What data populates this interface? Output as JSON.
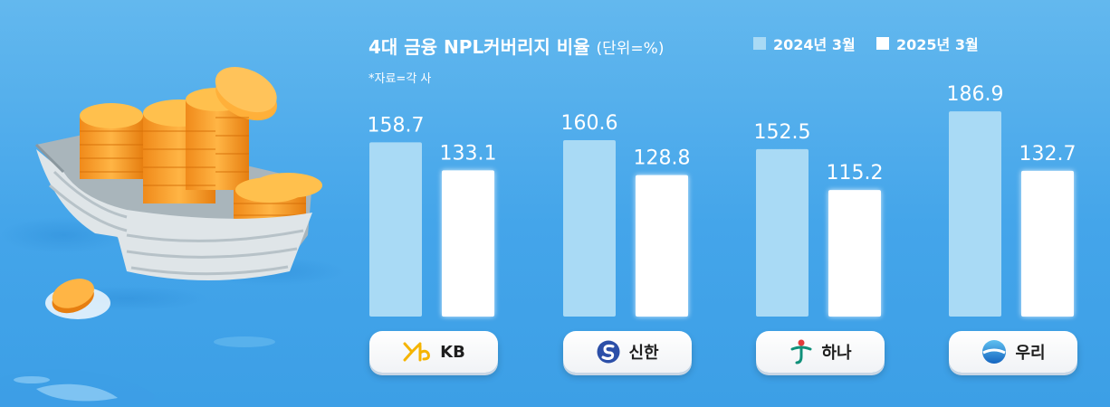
{
  "header": {
    "title": "4대 금융 NPL커버리지 비율",
    "unit": "(단위=%)",
    "source_note": "*자료=각 사"
  },
  "legend": [
    {
      "label": "2024년 3월",
      "color": "#a9daf5"
    },
    {
      "label": "2025년 3월",
      "color": "#ffffff"
    }
  ],
  "chart_data": {
    "type": "bar",
    "title": "4대 금융 NPL커버리지 비율",
    "unit": "(단위=%)",
    "categories": [
      "KB",
      "신한",
      "하나",
      "우리"
    ],
    "series": [
      {
        "name": "2024년 3월",
        "values": [
          158.7,
          160.6,
          152.5,
          186.9
        ]
      },
      {
        "name": "2025년 3월",
        "values": [
          133.1,
          128.8,
          115.2,
          132.7
        ]
      }
    ],
    "ylim": [
      0,
      187
    ],
    "grid": false,
    "legend_position": "top-right",
    "colors": {
      "2024년 3월": "#a9daf5",
      "2025년 3월": "#ffffff",
      "label_2024": "#ffffff",
      "label_2025": "#ffffff"
    }
  },
  "banks": [
    {
      "name": "KB",
      "icon": "kb-logo-icon"
    },
    {
      "name": "신한",
      "icon": "shinhan-logo-icon"
    },
    {
      "name": "하나",
      "icon": "hana-logo-icon"
    },
    {
      "name": "우리",
      "icon": "woori-logo-icon"
    }
  ],
  "illustration": {
    "icon": "boat-with-gold-coins-icon"
  }
}
